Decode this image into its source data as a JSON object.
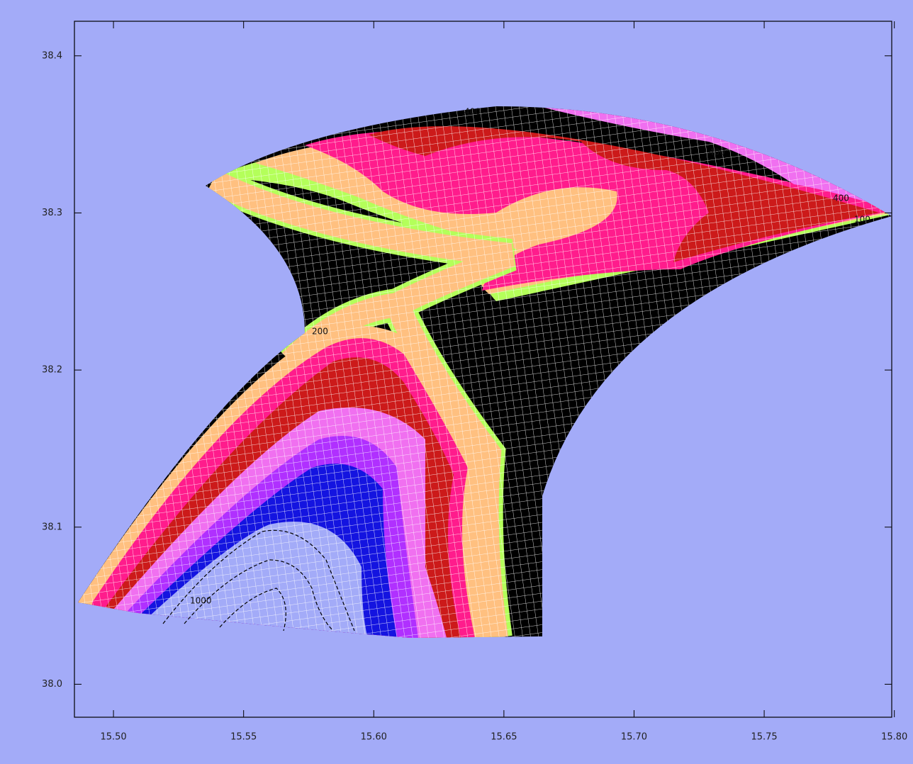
{
  "xaxis": {
    "lim": [
      15.485,
      15.799
    ],
    "ticks": [
      {
        "value": 15.5,
        "label": "15.50"
      },
      {
        "value": 15.55,
        "label": "15.55"
      },
      {
        "value": 15.6,
        "label": "15.60"
      },
      {
        "value": 15.65,
        "label": "15.65"
      },
      {
        "value": 15.7,
        "label": "15.70"
      },
      {
        "value": 15.75,
        "label": "15.75"
      },
      {
        "value": 15.8,
        "label": "15.80"
      }
    ]
  },
  "yaxis": {
    "lim": [
      37.979,
      38.422
    ],
    "ticks": [
      {
        "value": 38,
        "label": "38.0"
      },
      38.1,
      38.2,
      38.3,
      38.4
    ]
  },
  "contour_labels": [
    "400",
    "400",
    "400",
    "100",
    "200",
    "1000"
  ]
}
